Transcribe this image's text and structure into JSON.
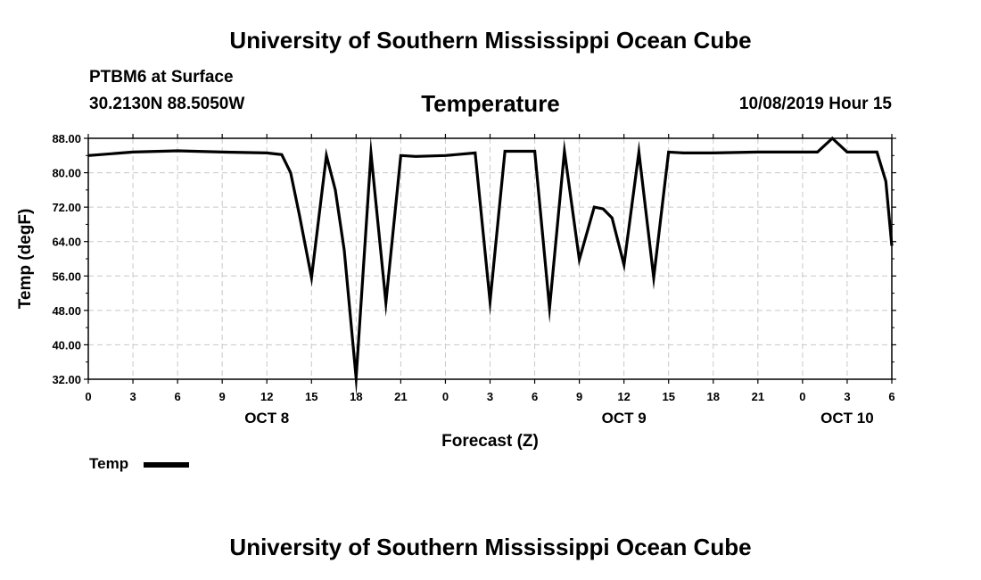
{
  "header": {
    "title": "University of Southern Mississippi Ocean Cube",
    "station": "PTBM6 at Surface",
    "coords": "30.2130N 88.5050W",
    "chart_title": "Temperature",
    "date_hour": "10/08/2019 Hour 15"
  },
  "footer": {
    "title": "University of Southern Mississippi Ocean Cube"
  },
  "legend": {
    "label": "Temp"
  },
  "colors": {
    "line": "#000000",
    "grid": "#c8c8c8",
    "background": "#ffffff"
  },
  "chart_data": {
    "type": "line",
    "title": "Temperature",
    "xlabel": "Forecast (Z)",
    "ylabel": "Temp (degF)",
    "ylim": [
      32,
      88
    ],
    "xlim": [
      0,
      54
    ],
    "x_unit": "hours from OCT 8 00Z",
    "y_ticks": [
      "88.00",
      "80.00",
      "72.00",
      "64.00",
      "56.00",
      "48.00",
      "40.00",
      "32.00"
    ],
    "y_tick_values": [
      88,
      80,
      72,
      64,
      56,
      48,
      40,
      32
    ],
    "x_ticks": [
      "0",
      "3",
      "6",
      "9",
      "12",
      "15",
      "18",
      "21",
      "0",
      "3",
      "6",
      "9",
      "12",
      "15",
      "18",
      "21",
      "0",
      "3",
      "6"
    ],
    "x_tick_hours": [
      0,
      3,
      6,
      9,
      12,
      15,
      18,
      21,
      24,
      27,
      30,
      33,
      36,
      39,
      42,
      45,
      48,
      51,
      54
    ],
    "day_labels": [
      {
        "label": "OCT 8",
        "hour": 12
      },
      {
        "label": "OCT 9",
        "hour": 36
      },
      {
        "label": "OCT 10",
        "hour": 51
      }
    ],
    "series": [
      {
        "name": "Temp",
        "x": [
          0,
          3,
          6,
          9,
          12,
          13,
          13.6,
          14.2,
          15,
          16,
          16.6,
          17.2,
          18,
          19,
          20,
          21,
          22,
          24,
          26,
          27,
          28,
          30,
          31,
          32,
          33,
          34,
          34.6,
          35.2,
          36,
          37,
          38,
          39,
          40,
          42,
          45,
          48,
          49,
          50,
          51,
          53,
          53.6,
          54
        ],
        "values": [
          84,
          84.8,
          85.1,
          84.8,
          84.6,
          84.2,
          80,
          70,
          55.6,
          84,
          76,
          62,
          32.3,
          84.5,
          49.8,
          84,
          83.8,
          84,
          84.6,
          50,
          85,
          85,
          48.5,
          85,
          59.8,
          72,
          71.6,
          69.5,
          58.6,
          84.8,
          55.6,
          84.8,
          84.6,
          84.6,
          84.8,
          84.8,
          84.8,
          88,
          84.8,
          84.8,
          78,
          63
        ]
      }
    ]
  }
}
